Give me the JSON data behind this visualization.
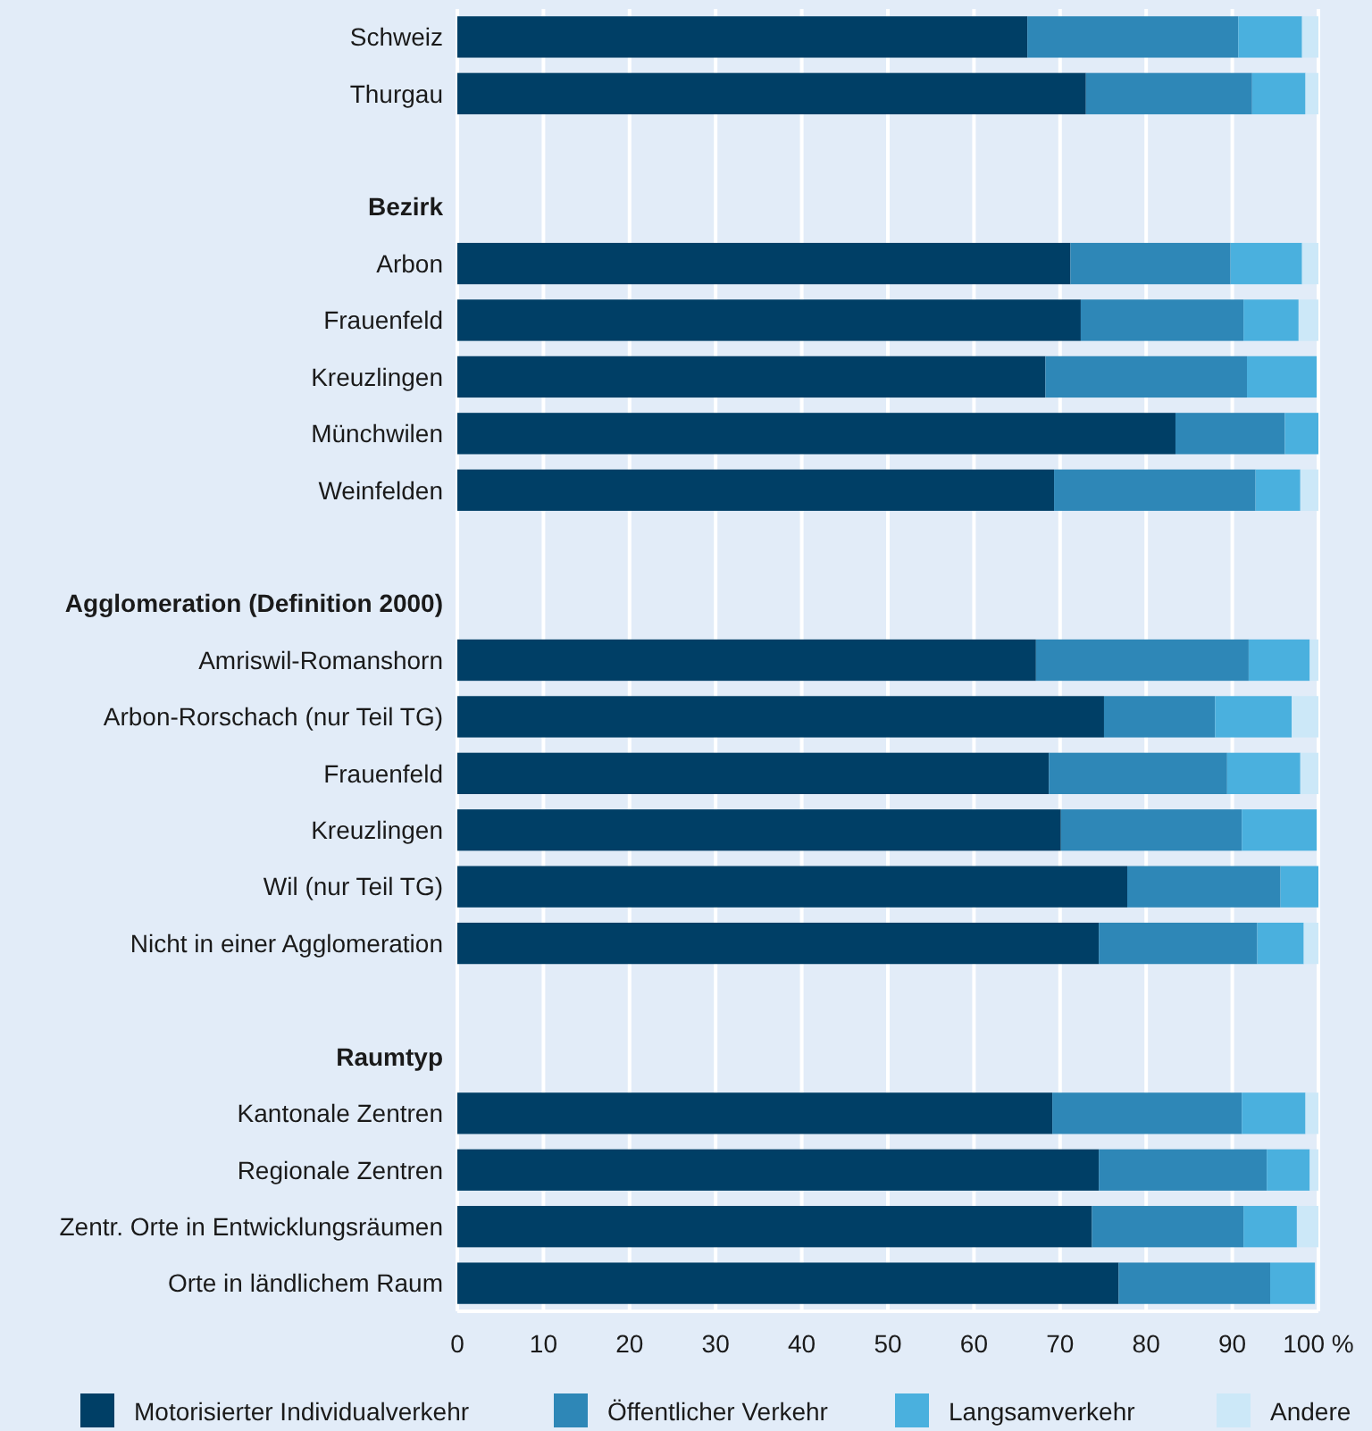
{
  "chart_data": {
    "type": "bar",
    "orientation": "horizontal",
    "stacked": true,
    "categories": [
      "Schweiz",
      "Thurgau",
      null,
      "Bezirk",
      "Arbon",
      "Frauenfeld",
      "Kreuzlingen",
      "Münchwilen",
      "Weinfelden",
      null,
      "Agglomeration (Definition 2000)",
      "Amriswil-Romanshorn",
      "Arbon-Rorschach (nur Teil TG)",
      "Frauenfeld",
      "Kreuzlingen",
      "Wil (nur Teil TG)",
      "Nicht in einer Agglomeration",
      null,
      "Raumtyp",
      "Kantonale Zentren",
      "Regionale Zentren",
      "Zentr. Orte in Entwicklungsräumen",
      "Orte in ländlichem Raum"
    ],
    "series": [
      {
        "name": "Motorisierter Individualverkehr",
        "color": "#003f66",
        "values": [
          66.2,
          73.0,
          null,
          null,
          71.2,
          72.4,
          68.3,
          83.4,
          69.3,
          null,
          null,
          67.2,
          75.1,
          68.7,
          70.1,
          77.8,
          74.5,
          null,
          null,
          69.1,
          74.5,
          73.7,
          76.8
        ]
      },
      {
        "name": "Öffentlicher Verkehr",
        "color": "#2e87b7",
        "values": [
          24.5,
          19.3,
          null,
          null,
          18.6,
          18.9,
          23.4,
          12.7,
          23.4,
          null,
          null,
          24.7,
          12.9,
          20.7,
          21.0,
          17.8,
          18.4,
          null,
          null,
          22.0,
          19.5,
          17.6,
          17.6
        ]
      },
      {
        "name": "Langsamverkehr",
        "color": "#4ab0de",
        "values": [
          7.4,
          6.2,
          null,
          null,
          8.3,
          6.4,
          8.1,
          3.9,
          5.2,
          null,
          null,
          7.1,
          8.9,
          8.5,
          8.7,
          4.4,
          5.4,
          null,
          null,
          7.4,
          5.0,
          6.2,
          5.2
        ]
      },
      {
        "name": "Andere",
        "color": "#cce8f8",
        "values": [
          1.9,
          1.5,
          null,
          null,
          1.9,
          2.3,
          null,
          0,
          2.1,
          null,
          null,
          1.0,
          3.1,
          2.1,
          null,
          0,
          1.7,
          null,
          null,
          1.5,
          1.0,
          2.5,
          null
        ]
      }
    ],
    "xlim": [
      0,
      100
    ],
    "xticks": [
      0,
      10,
      20,
      30,
      40,
      50,
      60,
      70,
      80,
      90,
      {
        "value": 100,
        "label": "100 %"
      }
    ],
    "grid": "x",
    "legend": "bottom"
  }
}
